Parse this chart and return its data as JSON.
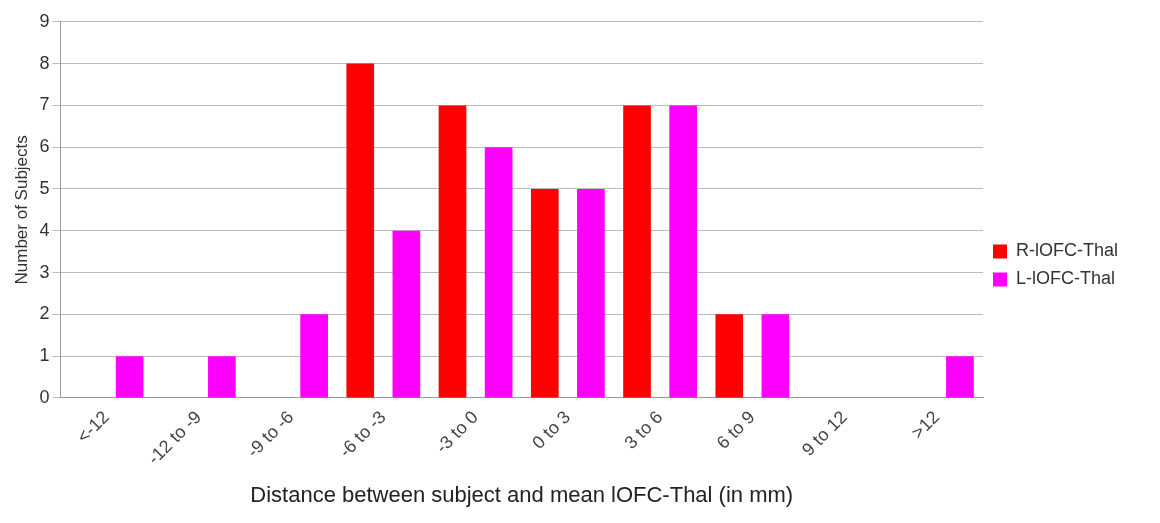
{
  "chart_data": {
    "type": "bar",
    "xlabel": "Distance between subject and mean lOFC-Thal (in mm)",
    "ylabel": "Number of Subjects",
    "categories": [
      "<-12",
      "-12 to -9",
      "-9 to -6",
      "-6 to -3",
      "-3 to 0",
      "0 to 3",
      "3 to 6",
      "6 to 9",
      "9 to 12",
      ">12"
    ],
    "series": [
      {
        "name": "R-lOFC-Thal",
        "color": "#ff0000",
        "values": [
          0,
          0,
          0,
          8,
          7,
          5,
          7,
          2,
          0,
          0
        ]
      },
      {
        "name": "L-lOFC-Thal",
        "color": "#ff00ff",
        "values": [
          1,
          1,
          2,
          4,
          6,
          5,
          7,
          2,
          0,
          1
        ]
      }
    ],
    "ylim": [
      0,
      9
    ],
    "yticks": [
      0,
      1,
      2,
      3,
      4,
      5,
      6,
      7,
      8,
      9
    ],
    "grid": "y",
    "legend": "right"
  }
}
